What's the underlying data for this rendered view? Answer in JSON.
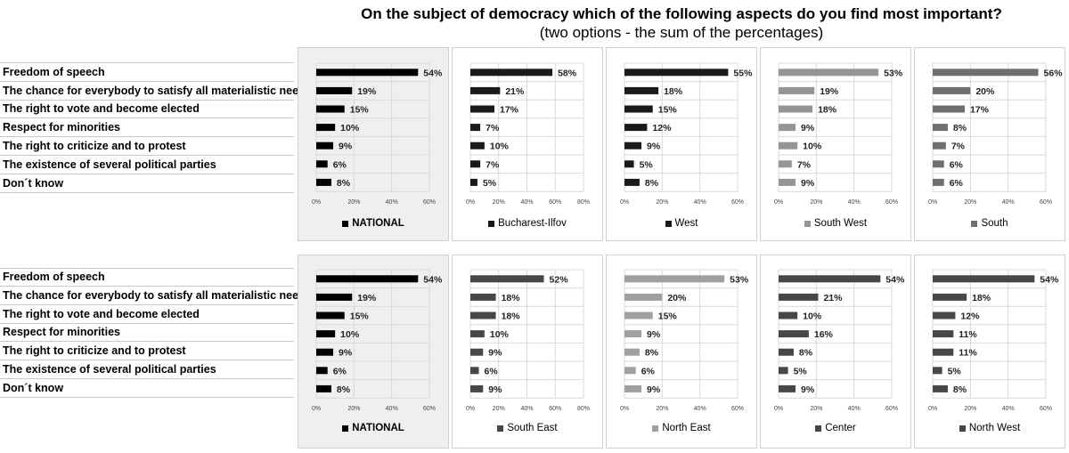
{
  "title": "On the subject of democracy which of the following aspects do you find most important?",
  "subtitle": "(two options - the sum of the percentages)",
  "categories": [
    "Freedom of speech",
    "The chance for everybody to satisfy all materialistic needs",
    "The right to vote and become elected",
    "Respect for minorities",
    "The right to criticize and to protest",
    "The existence of several political parties",
    "Don´t know"
  ],
  "chart_data": [
    {
      "type": "bar",
      "orientation": "horizontal",
      "name": "NATIONAL",
      "color": "#000000",
      "values": [
        54,
        19,
        15,
        10,
        9,
        6,
        8
      ],
      "xlim": [
        0,
        60
      ],
      "xticks": [
        "0%",
        "20%",
        "40%",
        "60%"
      ]
    },
    {
      "type": "bar",
      "orientation": "horizontal",
      "name": "Bucharest-Ilfov",
      "color": "#1a1a1a",
      "values": [
        58,
        21,
        17,
        7,
        10,
        7,
        5
      ],
      "xlim": [
        0,
        80
      ],
      "xticks": [
        "0%",
        "20%",
        "40%",
        "60%",
        "80%"
      ]
    },
    {
      "type": "bar",
      "orientation": "horizontal",
      "name": "West",
      "color": "#1a1a1a",
      "values": [
        55,
        18,
        15,
        12,
        9,
        5,
        8
      ],
      "xlim": [
        0,
        60
      ],
      "xticks": [
        "0%",
        "20%",
        "40%",
        "60%"
      ]
    },
    {
      "type": "bar",
      "orientation": "horizontal",
      "name": "South West",
      "color": "#959595",
      "values": [
        53,
        19,
        18,
        9,
        10,
        7,
        9
      ],
      "xlim": [
        0,
        60
      ],
      "xticks": [
        "0%",
        "20%",
        "40%",
        "60%"
      ]
    },
    {
      "type": "bar",
      "orientation": "horizontal",
      "name": "South",
      "color": "#6f6f6f",
      "values": [
        56,
        20,
        17,
        8,
        7,
        6,
        6
      ],
      "xlim": [
        0,
        60
      ],
      "xticks": [
        "0%",
        "20%",
        "40%",
        "60%"
      ]
    },
    {
      "type": "bar",
      "orientation": "horizontal",
      "name": "NATIONAL",
      "color": "#000000",
      "values": [
        54,
        19,
        15,
        10,
        9,
        6,
        8
      ],
      "xlim": [
        0,
        60
      ],
      "xticks": [
        "0%",
        "20%",
        "40%",
        "60%"
      ]
    },
    {
      "type": "bar",
      "orientation": "horizontal",
      "name": "South East",
      "color": "#474747",
      "values": [
        52,
        18,
        18,
        10,
        9,
        6,
        9
      ],
      "xlim": [
        0,
        80
      ],
      "xticks": [
        "0%",
        "20%",
        "40%",
        "60%",
        "80%"
      ]
    },
    {
      "type": "bar",
      "orientation": "horizontal",
      "name": "North East",
      "color": "#a0a0a0",
      "values": [
        53,
        20,
        15,
        9,
        8,
        6,
        9
      ],
      "xlim": [
        0,
        60
      ],
      "xticks": [
        "0%",
        "20%",
        "40%",
        "60%"
      ]
    },
    {
      "type": "bar",
      "orientation": "horizontal",
      "name": "Center",
      "color": "#474747",
      "values": [
        54,
        21,
        10,
        16,
        8,
        5,
        9
      ],
      "xlim": [
        0,
        60
      ],
      "xticks": [
        "0%",
        "20%",
        "40%",
        "60%"
      ]
    },
    {
      "type": "bar",
      "orientation": "horizontal",
      "name": "North West",
      "color": "#474747",
      "values": [
        54,
        18,
        12,
        11,
        11,
        5,
        8
      ],
      "xlim": [
        0,
        60
      ],
      "xticks": [
        "0%",
        "20%",
        "40%",
        "60%"
      ]
    }
  ]
}
